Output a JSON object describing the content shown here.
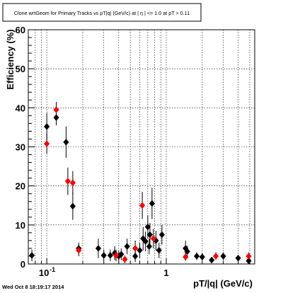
{
  "chart_data": {
    "type": "scatter",
    "title": "Clone wrtGeom for Primary Tracks vs pT|q| (GeV/c) at |  η | <= 1.0 at pT > 0.11",
    "xlabel": "pT/|q| (GeV/c)",
    "ylabel": "Efficiency (%)",
    "xscale": "log",
    "xlim": [
      0.07,
      5.5
    ],
    "ylim": [
      0,
      60
    ],
    "yticks": [
      0,
      10,
      20,
      30,
      40,
      50,
      60
    ],
    "xtick_labels": [
      {
        "value": 0.1,
        "label": "10",
        "exponent": "-1"
      },
      {
        "value": 1,
        "label": "1",
        "exponent": ""
      }
    ],
    "grid": true,
    "timestamp": "Wed Oct  8 18:19:17 2014",
    "series": [
      {
        "marker": "diamond",
        "color": "#000000",
        "points": [
          {
            "x": 0.075,
            "y": 2.2,
            "yerr": 1.5
          },
          {
            "x": 0.1,
            "y": 35.2,
            "yerr": 3.5
          },
          {
            "x": 0.12,
            "y": 37.5,
            "yerr": 2.0
          },
          {
            "x": 0.145,
            "y": 31.2,
            "yerr": 4.0
          },
          {
            "x": 0.165,
            "y": 14.8,
            "yerr": 3.5
          },
          {
            "x": 0.185,
            "y": 4.0,
            "yerr": 1.5
          },
          {
            "x": 0.27,
            "y": 4.0,
            "yerr": 2.5
          },
          {
            "x": 0.3,
            "y": 2.2,
            "yerr": 1.5
          },
          {
            "x": 0.34,
            "y": 2.2,
            "yerr": 1.5
          },
          {
            "x": 0.37,
            "y": 2.8,
            "yerr": 1.8
          },
          {
            "x": 0.4,
            "y": 2.0,
            "yerr": 1.5
          },
          {
            "x": 0.42,
            "y": 2.5,
            "yerr": 1.5
          },
          {
            "x": 0.47,
            "y": 4.5,
            "yerr": 2.0
          },
          {
            "x": 0.55,
            "y": 2.0,
            "yerr": 1.5
          },
          {
            "x": 0.6,
            "y": 3.5,
            "yerr": 2.0
          },
          {
            "x": 0.64,
            "y": 6.5,
            "yerr": 3.0
          },
          {
            "x": 0.67,
            "y": 5.8,
            "yerr": 2.5
          },
          {
            "x": 0.7,
            "y": 9.5,
            "yerr": 3.0
          },
          {
            "x": 0.73,
            "y": 7.5,
            "yerr": 3.0
          },
          {
            "x": 0.76,
            "y": 15.5,
            "yerr": 4.0
          },
          {
            "x": 0.72,
            "y": 4.5,
            "yerr": 2.0
          },
          {
            "x": 0.82,
            "y": 6.0,
            "yerr": 2.5
          },
          {
            "x": 0.87,
            "y": 3.5,
            "yerr": 2.0
          },
          {
            "x": 0.92,
            "y": 7.5,
            "yerr": 2.5
          },
          {
            "x": 1.45,
            "y": 4.0,
            "yerr": 2.0
          },
          {
            "x": 1.5,
            "y": 3.2,
            "yerr": 1.5
          },
          {
            "x": 1.8,
            "y": 2.0,
            "yerr": 1.0
          },
          {
            "x": 2.0,
            "y": 1.8,
            "yerr": 1.0
          },
          {
            "x": 2.4,
            "y": 1.0,
            "yerr": 0.8
          },
          {
            "x": 3.0,
            "y": 2.0,
            "yerr": 1.0
          },
          {
            "x": 4.0,
            "y": 1.5,
            "yerr": 0.8
          },
          {
            "x": 4.9,
            "y": 0.8,
            "yerr": 0.6
          }
        ]
      },
      {
        "marker": "diamond",
        "color": "#ff0000",
        "points": [
          {
            "x": 0.1,
            "y": 30.8,
            "yerr": 2.5
          },
          {
            "x": 0.12,
            "y": 39.5,
            "yerr": 2.0
          },
          {
            "x": 0.15,
            "y": 21.2,
            "yerr": 3.5
          },
          {
            "x": 0.165,
            "y": 20.8,
            "yerr": 3.0
          },
          {
            "x": 0.185,
            "y": 3.5,
            "yerr": 1.5
          },
          {
            "x": 0.38,
            "y": 2.2,
            "yerr": 1.5
          },
          {
            "x": 0.45,
            "y": 1.2,
            "yerr": 1.0
          },
          {
            "x": 0.55,
            "y": 4.0,
            "yerr": 2.0
          },
          {
            "x": 0.63,
            "y": 15.0,
            "yerr": 3.5
          },
          {
            "x": 0.78,
            "y": 6.5,
            "yerr": 2.5
          },
          {
            "x": 1.45,
            "y": 1.8,
            "yerr": 1.0
          },
          {
            "x": 2.6,
            "y": 2.0,
            "yerr": 1.0
          },
          {
            "x": 4.9,
            "y": 2.0,
            "yerr": 1.0
          }
        ]
      }
    ]
  }
}
